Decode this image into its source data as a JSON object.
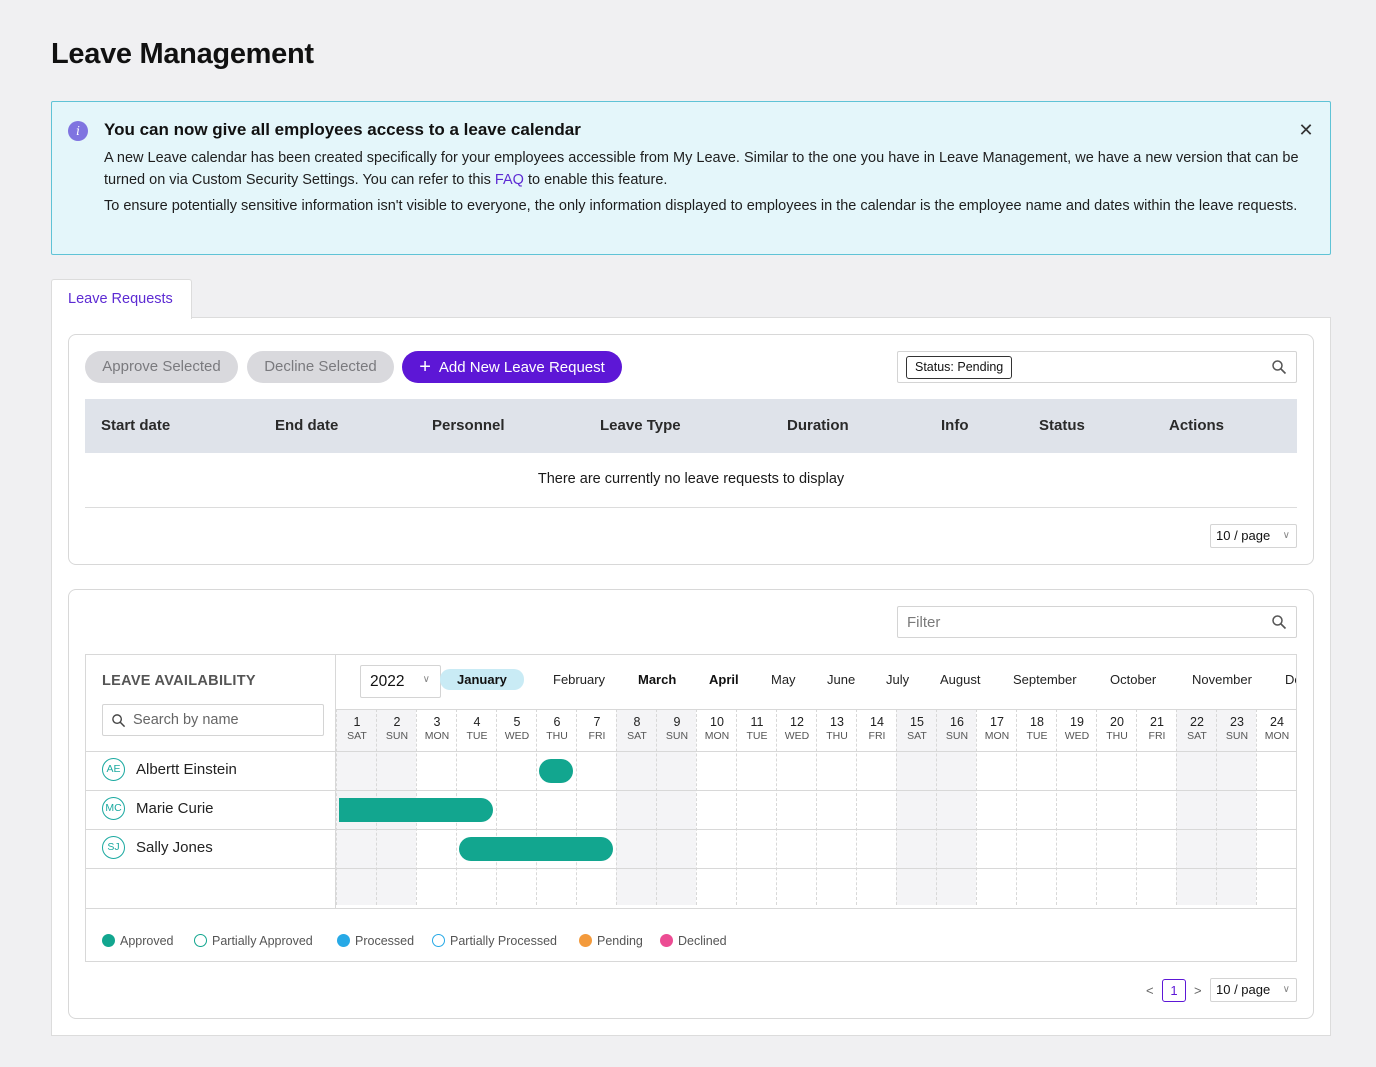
{
  "page": {
    "title": "Leave Management"
  },
  "banner": {
    "title": "You can now give all employees access to a leave calendar",
    "p1_before": "A new Leave calendar has been created specifically for your employees accessible from My Leave. Similar to the one you have in Leave Management, we have a new version that can be turned on via Custom Security Settings. You can refer to this ",
    "p1_link": "FAQ",
    "p1_after": " to enable this feature.",
    "p2": "To ensure potentially sensitive information isn't visible to everyone, the only information displayed to employees in the calendar is the employee name and dates within the leave requests.",
    "info_icon": "info-icon",
    "close_icon": "close-icon"
  },
  "tabs": [
    {
      "label": "Leave Requests",
      "active": true
    }
  ],
  "requests": {
    "approve_label": "Approve Selected",
    "decline_label": "Decline Selected",
    "add_label": "Add New Leave Request",
    "status_chip": "Status: Pending",
    "columns": [
      "Start date",
      "End date",
      "Personnel",
      "Leave Type",
      "Duration",
      "Info",
      "Status",
      "Actions"
    ],
    "empty_message": "There are currently no leave requests to display",
    "page_size": "10 / page"
  },
  "calendar": {
    "filter_placeholder": "Filter",
    "title": "LEAVE AVAILABILITY",
    "search_placeholder": "Search by name",
    "year": "2022",
    "months": [
      "January",
      "February",
      "March",
      "April",
      "May",
      "June",
      "July",
      "August",
      "September",
      "October",
      "November",
      "De"
    ],
    "active_month": "January",
    "days": [
      {
        "num": "1",
        "dow": "SAT"
      },
      {
        "num": "2",
        "dow": "SUN"
      },
      {
        "num": "3",
        "dow": "MON"
      },
      {
        "num": "4",
        "dow": "TUE"
      },
      {
        "num": "5",
        "dow": "WED"
      },
      {
        "num": "6",
        "dow": "THU"
      },
      {
        "num": "7",
        "dow": "FRI"
      },
      {
        "num": "8",
        "dow": "SAT"
      },
      {
        "num": "9",
        "dow": "SUN"
      },
      {
        "num": "10",
        "dow": "MON"
      },
      {
        "num": "11",
        "dow": "TUE"
      },
      {
        "num": "12",
        "dow": "WED"
      },
      {
        "num": "13",
        "dow": "THU"
      },
      {
        "num": "14",
        "dow": "FRI"
      },
      {
        "num": "15",
        "dow": "SAT"
      },
      {
        "num": "16",
        "dow": "SUN"
      },
      {
        "num": "17",
        "dow": "MON"
      },
      {
        "num": "18",
        "dow": "TUE"
      },
      {
        "num": "19",
        "dow": "WED"
      },
      {
        "num": "20",
        "dow": "THU"
      },
      {
        "num": "21",
        "dow": "FRI"
      },
      {
        "num": "22",
        "dow": "SAT"
      },
      {
        "num": "23",
        "dow": "SUN"
      },
      {
        "num": "24",
        "dow": "MON"
      }
    ],
    "people": [
      {
        "initials": "AE",
        "name": "Albertt Einstein",
        "leave_from_day": 6,
        "leave_to_day": 6
      },
      {
        "initials": "MC",
        "name": "Marie Curie",
        "leave_from_day": 1,
        "leave_to_day": 4
      },
      {
        "initials": "SJ",
        "name": "Sally Jones",
        "leave_from_day": 4,
        "leave_to_day": 7
      }
    ],
    "legend": [
      {
        "label": "Approved",
        "color": "#12a68f",
        "filled": true
      },
      {
        "label": "Partially Approved",
        "color": "#12a68f",
        "filled": false
      },
      {
        "label": "Processed",
        "color": "#27a9e6",
        "filled": true
      },
      {
        "label": "Partially Processed",
        "color": "#27a9e6",
        "filled": false
      },
      {
        "label": "Pending",
        "color": "#f39a3c",
        "filled": true
      },
      {
        "label": "Declined",
        "color": "#ec4c93",
        "filled": true
      }
    ],
    "pager": {
      "prev": "<",
      "current": "1",
      "next": ">",
      "page_size": "10 / page"
    }
  },
  "colors": {
    "accent": "#5d17d6",
    "approved": "#12a68f",
    "banner_bg": "#e4f6fa"
  }
}
